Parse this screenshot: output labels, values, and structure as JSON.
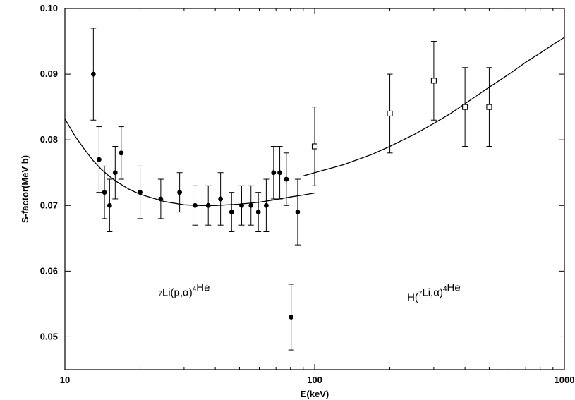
{
  "chart_data": {
    "type": "scatter",
    "xlabel": "E(keV)",
    "ylabel": "S-factor(MeV b)",
    "xscale": "log",
    "xlim": [
      10,
      1000
    ],
    "ylim": [
      0.045,
      0.1
    ],
    "grid": false,
    "x_ticks": [
      {
        "value": 10,
        "label": "10"
      },
      {
        "value": 100,
        "label": "100"
      },
      {
        "value": 1000,
        "label": "1000"
      }
    ],
    "y_ticks": [
      {
        "value": 0.05,
        "label": "0.05"
      },
      {
        "value": 0.06,
        "label": "0.06"
      },
      {
        "value": 0.07,
        "label": "0.07"
      },
      {
        "value": 0.08,
        "label": "0.08"
      },
      {
        "value": 0.09,
        "label": "0.09"
      },
      {
        "value": 0.1,
        "label": "0.10"
      }
    ],
    "series": [
      {
        "marker": "filled-circle",
        "points": [
          {
            "x": 13.0,
            "y": 0.09,
            "lo": 0.083,
            "hi": 0.097
          },
          {
            "x": 13.7,
            "y": 0.077,
            "lo": 0.072,
            "hi": 0.082
          },
          {
            "x": 14.4,
            "y": 0.072,
            "lo": 0.068,
            "hi": 0.076
          },
          {
            "x": 15.1,
            "y": 0.07,
            "lo": 0.066,
            "hi": 0.074
          },
          {
            "x": 15.9,
            "y": 0.075,
            "lo": 0.071,
            "hi": 0.079
          },
          {
            "x": 16.8,
            "y": 0.078,
            "lo": 0.074,
            "hi": 0.082
          },
          {
            "x": 20.0,
            "y": 0.072,
            "lo": 0.068,
            "hi": 0.076
          },
          {
            "x": 24.2,
            "y": 0.071,
            "lo": 0.068,
            "hi": 0.074
          },
          {
            "x": 28.8,
            "y": 0.072,
            "lo": 0.069,
            "hi": 0.075
          },
          {
            "x": 33.2,
            "y": 0.07,
            "lo": 0.067,
            "hi": 0.073
          },
          {
            "x": 37.5,
            "y": 0.07,
            "lo": 0.067,
            "hi": 0.073
          },
          {
            "x": 42.0,
            "y": 0.071,
            "lo": 0.067,
            "hi": 0.075
          },
          {
            "x": 46.5,
            "y": 0.069,
            "lo": 0.066,
            "hi": 0.072
          },
          {
            "x": 51.0,
            "y": 0.07,
            "lo": 0.067,
            "hi": 0.073
          },
          {
            "x": 55.6,
            "y": 0.07,
            "lo": 0.067,
            "hi": 0.073
          },
          {
            "x": 59.5,
            "y": 0.069,
            "lo": 0.066,
            "hi": 0.072
          },
          {
            "x": 64.0,
            "y": 0.07,
            "lo": 0.066,
            "hi": 0.074
          },
          {
            "x": 68.5,
            "y": 0.075,
            "lo": 0.071,
            "hi": 0.079
          },
          {
            "x": 72.5,
            "y": 0.075,
            "lo": 0.071,
            "hi": 0.079
          },
          {
            "x": 77.0,
            "y": 0.074,
            "lo": 0.07,
            "hi": 0.078
          },
          {
            "x": 80.5,
            "y": 0.053,
            "lo": 0.048,
            "hi": 0.058
          },
          {
            "x": 85.5,
            "y": 0.069,
            "lo": 0.064,
            "hi": 0.074
          }
        ]
      },
      {
        "marker": "open-square",
        "points": [
          {
            "x": 100,
            "y": 0.079,
            "lo": 0.073,
            "hi": 0.085
          },
          {
            "x": 200,
            "y": 0.084,
            "lo": 0.078,
            "hi": 0.09
          },
          {
            "x": 300,
            "y": 0.089,
            "lo": 0.083,
            "hi": 0.095
          },
          {
            "x": 400,
            "y": 0.085,
            "lo": 0.079,
            "hi": 0.091
          },
          {
            "x": 500,
            "y": 0.085,
            "lo": 0.079,
            "hi": 0.091
          }
        ]
      }
    ],
    "curves": [
      {
        "style": "solid",
        "points": [
          [
            10,
            0.0832
          ],
          [
            11,
            0.0805
          ],
          [
            12,
            0.0785
          ],
          [
            13,
            0.0768
          ],
          [
            14,
            0.0755
          ],
          [
            15,
            0.0745
          ],
          [
            16,
            0.0737
          ],
          [
            18,
            0.0725
          ],
          [
            20,
            0.0717
          ],
          [
            25,
            0.0706
          ],
          [
            30,
            0.0701
          ],
          [
            35,
            0.07
          ],
          [
            40,
            0.07
          ],
          [
            50,
            0.0702
          ],
          [
            60,
            0.0705
          ],
          [
            70,
            0.0709
          ],
          [
            80,
            0.0713
          ],
          [
            90,
            0.0716
          ],
          [
            100,
            0.0719
          ]
        ]
      },
      {
        "style": "solid",
        "points": [
          [
            90,
            0.0745
          ],
          [
            100,
            0.075
          ],
          [
            130,
            0.0762
          ],
          [
            170,
            0.0778
          ],
          [
            200,
            0.079
          ],
          [
            250,
            0.0808
          ],
          [
            300,
            0.0825
          ],
          [
            350,
            0.084
          ],
          [
            400,
            0.0855
          ],
          [
            500,
            0.088
          ],
          [
            600,
            0.09
          ],
          [
            700,
            0.0918
          ],
          [
            800,
            0.0932
          ],
          [
            900,
            0.0945
          ],
          [
            1000,
            0.0956
          ]
        ]
      }
    ],
    "annotations": [
      {
        "x": 30,
        "y": 0.0555,
        "pre": "",
        "sup1": "7",
        "mid": "Li(p,α)",
        "sup2": "4",
        "post": "He"
      },
      {
        "x": 300,
        "y": 0.0555,
        "pre": "H(",
        "sup1": "7",
        "mid": "Li,α)",
        "sup2": "4",
        "post": "He"
      }
    ]
  }
}
